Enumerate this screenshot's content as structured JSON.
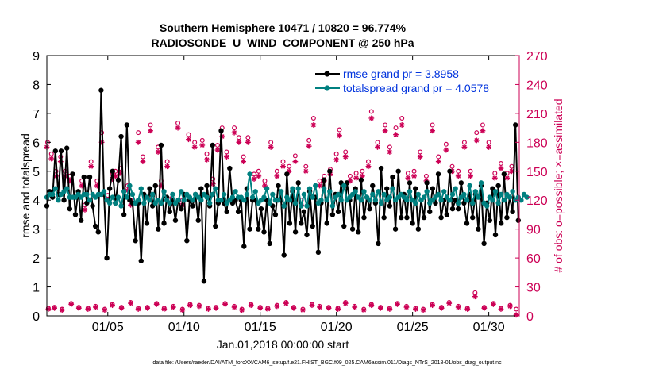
{
  "chart_data": {
    "type": "line",
    "title_line1": "Southern Hemisphere 10471 / 10820 = 96.774%",
    "title_line2": "RADIOSONDE_U_WIND_COMPONENT @ 250 hPa",
    "xlabel": "Jan.01,2018 00:00:00 start",
    "ylabel_left": "rmse and totalspread",
    "ylabel_right": "# of obs: o=possible; ×=assimilated",
    "footer": "data file: /Users/raeder/DAI/ATM_forcXX/CAM6_setup/f.e21.FHIST_BGC.f09_025.CAM6assim.011/Diags_NTrS_2018-01/obs_diag_output.nc",
    "xlim": [
      1,
      32
    ],
    "ylim_left": [
      0,
      9
    ],
    "ylim_right": [
      0,
      270
    ],
    "x_ticks": [
      5,
      10,
      15,
      20,
      25,
      30
    ],
    "x_tick_labels": [
      "01/05",
      "01/10",
      "01/15",
      "01/20",
      "01/25",
      "01/30"
    ],
    "left_ticks": [
      0,
      1,
      2,
      3,
      4,
      5,
      6,
      7,
      8,
      9
    ],
    "left_tick_labels": [
      "0",
      "1",
      "2",
      "3",
      "4",
      "5",
      "6",
      "7",
      "8",
      "9"
    ],
    "right_ticks": [
      0,
      30,
      60,
      90,
      120,
      150,
      180,
      210,
      240,
      270
    ],
    "right_tick_labels": [
      "0",
      "30",
      "60",
      "90",
      "120",
      "150",
      "180",
      "210",
      "240",
      "270"
    ],
    "legend": [
      {
        "label": "rmse grand pr = 3.8958",
        "color": "#000000"
      },
      {
        "label": "totalspread grand pr = 4.0578",
        "color": "#008080"
      }
    ],
    "colors": {
      "rmse": "#000000",
      "spread": "#008080",
      "obs": "#cc0055",
      "legend_text": "#0033dd",
      "right_axis": "#cc0055"
    },
    "series": [
      {
        "name": "rmse",
        "values": [
          3.8,
          4.3,
          4.1,
          5.7,
          4.2,
          5.7,
          4.0,
          5.8,
          3.7,
          4.9,
          3.5,
          4.3,
          3.3,
          4.8,
          3.9,
          4.8,
          3.8,
          3.1,
          2.9,
          7.8,
          4.2,
          2.0,
          4.4,
          5.0,
          3.9,
          4.7,
          6.2,
          3.5,
          6.6,
          4.0,
          3.9,
          2.6,
          3.9,
          1.9,
          4.2,
          3.2,
          4.4,
          3.8,
          4.5,
          3.0,
          5.9,
          3.2,
          4.1,
          3.6,
          4.0,
          3.3,
          4.0,
          3.7,
          4.2,
          2.6,
          4.0,
          3.8,
          4.2,
          3.3,
          4.4,
          1.2,
          4.5,
          3.8,
          5.9,
          3.1,
          3.9,
          6.4,
          3.9,
          3.6,
          5.1,
          3.9,
          4.0,
          3.6,
          4.0,
          2.4,
          4.4,
          3.0,
          4.0,
          4.0,
          3.0,
          3.7,
          2.9,
          4.0,
          2.5,
          3.8,
          3.5,
          4.5,
          4.0,
          2.1,
          4.9,
          3.2,
          4.3,
          2.9,
          4.6,
          3.2,
          3.6,
          2.8,
          4.3,
          3.1,
          4.1,
          2.2,
          3.9,
          4.7,
          3.2,
          5.0,
          3.5,
          4.2,
          3.6,
          4.6,
          3.1,
          4.6,
          4.0,
          3.0,
          4.4,
          2.9,
          4.7,
          3.4,
          4.1,
          3.7,
          4.5,
          3.9,
          2.5,
          5.1,
          3.4,
          4.4,
          3.8,
          4.8,
          3.0,
          5.0,
          3.4,
          4.2,
          3.4,
          4.6,
          3.2,
          4.4,
          3.0,
          4.0,
          3.4,
          4.6,
          3.6,
          4.4,
          3.9,
          4.9,
          3.4,
          4.0,
          3.5,
          5.0,
          3.7,
          4.0,
          3.7,
          4.6,
          3.9,
          3.2,
          4.2,
          3.4,
          4.2,
          3.0,
          4.5,
          2.5,
          3.9,
          3.3,
          4.4,
          2.8,
          4.5,
          3.2,
          4.9,
          3.4,
          4.1,
          3.6,
          6.6,
          3.3
        ],
        "x_start": 1.0,
        "x_step": 0.1875
      },
      {
        "name": "totalspread",
        "values": [
          4.1,
          4.2,
          4.2,
          4.4,
          4.0,
          4.2,
          4.3,
          4.4,
          4.1,
          4.1,
          4.1,
          4.2,
          4.1,
          4.2,
          4.2,
          4.0,
          4.2,
          4.1,
          4.2,
          4.2,
          4.3,
          4.0,
          3.9,
          4.1,
          3.9,
          4.1,
          3.8,
          4.3,
          4.1,
          4.5,
          4.2,
          3.9,
          4.0,
          4.4,
          3.9,
          4.1,
          4.0,
          4.2,
          3.9,
          4.0,
          3.9,
          4.3,
          4.0,
          3.9,
          4.2,
          3.9,
          4.0,
          4.3,
          4.0,
          4.2,
          4.1,
          4.0,
          4.2,
          4.1,
          4.0,
          4.2,
          4.1,
          3.9,
          4.2,
          4.4,
          4.0,
          4.0,
          4.2,
          3.9,
          4.0,
          4.1,
          4.3,
          4.1,
          4.1,
          4.0,
          4.2,
          4.9,
          4.1,
          4.3,
          3.9,
          4.0,
          4.1,
          4.4,
          3.9,
          4.2,
          4.0,
          4.0,
          4.3,
          3.8,
          4.1,
          4.0,
          4.4,
          3.9,
          4.4,
          3.8,
          4.2,
          3.8,
          4.4,
          4.1,
          4.5,
          3.9,
          4.0,
          4.4,
          4.0,
          4.3,
          3.8,
          4.1,
          4.2,
          4.0,
          4.5,
          4.0,
          4.1,
          4.2,
          4.3,
          4.1,
          4.0,
          4.3,
          4.1,
          4.0,
          4.2,
          4.0,
          4.3,
          3.9,
          4.2,
          4.0,
          4.1,
          4.4,
          4.0,
          4.1,
          4.2,
          4.1,
          4.0,
          4.3,
          4.0,
          3.9,
          4.2,
          4.0,
          4.1,
          4.3,
          3.9,
          4.0,
          4.1,
          4.2,
          4.0,
          4.3,
          4.1,
          4.0,
          4.2,
          4.4,
          3.9,
          4.1,
          4.2,
          4.0,
          4.5,
          3.9,
          4.3,
          4.1,
          4.6,
          3.9,
          3.8,
          4.1,
          4.0,
          4.3,
          3.9,
          4.2,
          4.0,
          4.2,
          4.1,
          4.3,
          4.0,
          4.1,
          4.0,
          4.2,
          4.1
        ],
        "x_start": 1.0,
        "x_step": 0.1875
      },
      {
        "name": "possible",
        "marker": "circle",
        "axis": "right",
        "x": [
          1.05,
          1.3,
          1.6,
          1.9,
          2.2,
          2.5,
          3.3,
          3.5,
          3.9,
          4.3,
          4.6,
          5.0,
          5.3,
          5.5,
          5.8,
          6.3,
          6.5,
          7.0,
          7.3,
          7.8,
          8.3,
          8.5,
          8.9,
          9.2,
          9.6,
          9.9,
          10.3,
          10.7,
          11.2,
          11.5,
          11.9,
          12.2,
          12.5,
          12.8,
          13.3,
          13.6,
          13.9,
          14.2,
          14.6,
          14.9,
          15.3,
          15.7,
          16.1,
          16.5,
          16.9,
          17.3,
          17.7,
          18.0,
          18.2,
          18.5,
          18.9,
          19.2,
          19.6,
          20.0,
          20.2,
          20.6,
          20.9,
          21.3,
          21.7,
          22.1,
          22.3,
          22.7,
          23.2,
          23.5,
          23.9,
          24.3,
          24.7,
          25.1,
          25.5,
          25.9,
          26.3,
          26.7,
          27.2,
          27.6,
          28.0,
          28.4,
          28.8,
          29.2,
          29.6,
          30.0,
          30.4,
          30.8,
          31.2,
          31.5
        ],
        "values": [
          180,
          168,
          150,
          165,
          150,
          145,
          140,
          115,
          160,
          140,
          190,
          125,
          147,
          150,
          153,
          135,
          120,
          190,
          165,
          198,
          175,
          140,
          160,
          122,
          200,
          120,
          188,
          180,
          182,
          168,
          142,
          177,
          195,
          170,
          195,
          185,
          165,
          185,
          147,
          150,
          140,
          180,
          150,
          160,
          155,
          166,
          120,
          155,
          182,
          205,
          140,
          145,
          152,
          168,
          193,
          170,
          145,
          148,
          150,
          160,
          212,
          180,
          198,
          175,
          195,
          205,
          148,
          150,
          170,
          145,
          198,
          165,
          178,
          155,
          150,
          180,
          150,
          190,
          198,
          180,
          148,
          158,
          148,
          155
        ]
      },
      {
        "name": "assimilated",
        "marker": "asterisk",
        "axis": "right",
        "x": [
          1.0,
          1.3,
          1.6,
          1.9,
          2.2,
          2.5,
          3.3,
          3.5,
          3.9,
          4.3,
          4.6,
          5.0,
          5.3,
          5.5,
          5.8,
          6.3,
          6.5,
          7.0,
          7.3,
          7.8,
          8.3,
          8.5,
          8.9,
          9.2,
          9.6,
          9.9,
          10.3,
          10.7,
          11.2,
          11.5,
          11.9,
          12.2,
          12.5,
          12.8,
          13.3,
          13.6,
          13.9,
          14.2,
          14.6,
          14.9,
          15.3,
          15.7,
          16.1,
          16.5,
          16.9,
          17.3,
          17.7,
          18.0,
          18.2,
          18.5,
          18.9,
          19.2,
          19.6,
          20.0,
          20.2,
          20.6,
          20.9,
          21.3,
          21.7,
          22.1,
          22.3,
          22.7,
          23.2,
          23.5,
          23.9,
          24.3,
          24.7,
          25.1,
          25.5,
          25.9,
          26.3,
          26.7,
          27.2,
          27.6,
          28.0,
          28.4,
          28.8,
          29.2,
          29.6,
          30.0,
          30.4,
          30.8,
          31.2,
          31.5
        ],
        "values": [
          175,
          163,
          145,
          160,
          145,
          140,
          135,
          110,
          155,
          135,
          180,
          120,
          142,
          145,
          148,
          130,
          115,
          180,
          160,
          192,
          170,
          135,
          155,
          117,
          195,
          115,
          183,
          175,
          177,
          162,
          137,
          172,
          186,
          165,
          190,
          180,
          160,
          180,
          142,
          145,
          135,
          175,
          145,
          155,
          150,
          160,
          115,
          150,
          176,
          198,
          135,
          140,
          147,
          162,
          187,
          165,
          140,
          143,
          145,
          155,
          205,
          175,
          192,
          170,
          188,
          198,
          143,
          145,
          165,
          140,
          192,
          160,
          172,
          150,
          145,
          175,
          145,
          182,
          192,
          175,
          143,
          153,
          143,
          150
        ]
      },
      {
        "name": "possible_low",
        "marker": "circle",
        "axis": "right",
        "x": [
          1.1,
          1.5,
          2.0,
          2.6,
          3.1,
          3.7,
          4.2,
          4.8,
          5.3,
          5.9,
          6.5,
          7.0,
          7.6,
          8.2,
          8.7,
          9.3,
          9.9,
          10.4,
          11.0,
          11.6,
          12.1,
          12.7,
          13.3,
          13.8,
          14.4,
          15.0,
          15.5,
          16.1,
          16.7,
          17.2,
          17.8,
          18.4,
          18.9,
          19.5,
          20.1,
          20.6,
          21.2,
          21.8,
          22.3,
          22.9,
          23.5,
          24.0,
          24.6,
          25.2,
          25.7,
          26.3,
          26.9,
          27.4,
          28.0,
          28.6,
          29.1,
          29.7,
          30.3,
          30.8,
          31.4,
          31.8
        ],
        "values": [
          8,
          9,
          7,
          13,
          9,
          8,
          10,
          7,
          12,
          9,
          14,
          8,
          9,
          13,
          8,
          10,
          7,
          12,
          11,
          8,
          9,
          13,
          10,
          7,
          12,
          9,
          8,
          11,
          14,
          9,
          7,
          12,
          10,
          9,
          8,
          14,
          10,
          7,
          12,
          9,
          8,
          13,
          10,
          8,
          7,
          12,
          9,
          14,
          10,
          8,
          24,
          9,
          13,
          8,
          11,
          7
        ]
      },
      {
        "name": "assimilated_low",
        "marker": "asterisk",
        "axis": "right",
        "x": [
          1.1,
          1.5,
          2.0,
          2.6,
          3.1,
          3.7,
          4.2,
          4.8,
          5.3,
          5.9,
          6.5,
          7.0,
          7.6,
          8.2,
          8.7,
          9.3,
          9.9,
          10.4,
          11.0,
          11.6,
          12.1,
          12.7,
          13.3,
          13.8,
          14.4,
          15.0,
          15.5,
          16.1,
          16.7,
          17.2,
          17.8,
          18.4,
          18.9,
          19.5,
          20.1,
          20.6,
          21.2,
          21.8,
          22.3,
          22.9,
          23.5,
          24.0,
          24.6,
          25.2,
          25.7,
          26.3,
          26.9,
          27.4,
          28.0,
          28.6,
          29.1,
          29.7,
          30.3,
          30.8,
          31.4,
          31.8
        ],
        "values": [
          7,
          8,
          6,
          12,
          8,
          7,
          9,
          6,
          11,
          8,
          13,
          7,
          8,
          12,
          7,
          9,
          6,
          11,
          10,
          7,
          8,
          12,
          9,
          6,
          11,
          8,
          7,
          10,
          13,
          8,
          6,
          11,
          9,
          8,
          7,
          13,
          9,
          6,
          11,
          8,
          7,
          12,
          9,
          7,
          6,
          11,
          8,
          13,
          9,
          7,
          20,
          8,
          12,
          7,
          10,
          1
        ]
      }
    ]
  }
}
